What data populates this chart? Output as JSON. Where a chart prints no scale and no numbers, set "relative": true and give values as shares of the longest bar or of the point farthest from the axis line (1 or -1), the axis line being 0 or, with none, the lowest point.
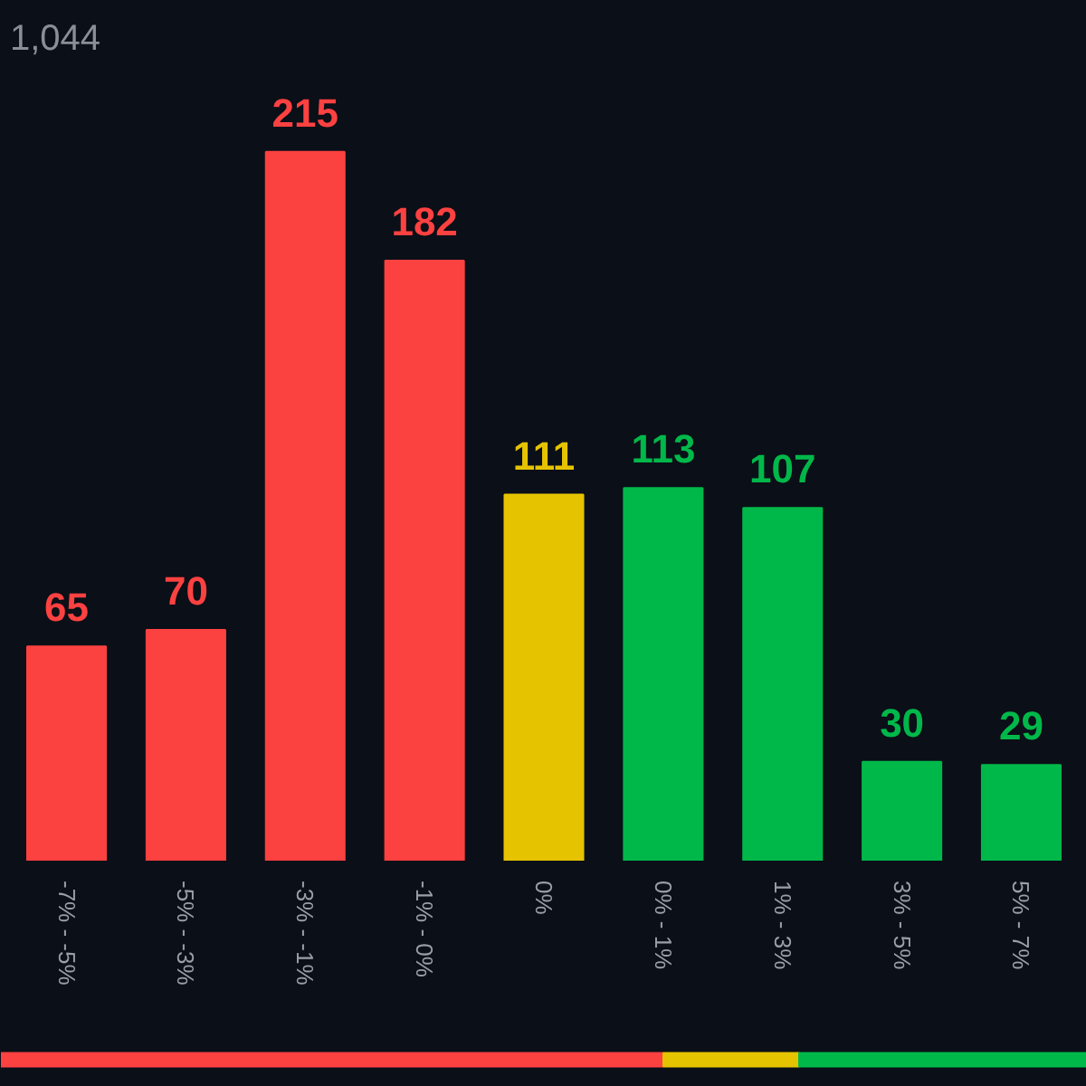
{
  "chart_data": [
    {
      "type": "bar",
      "categories": [
        "-7% - -5%",
        "-5% - -3%",
        "-3% - -1%",
        "-1% - 0%",
        "0%",
        "0% - 1%",
        "1% - 3%",
        "3% - 5%",
        "5% - 7%"
      ],
      "values": [
        65,
        70,
        215,
        182,
        111,
        113,
        107,
        30,
        29
      ],
      "colors": [
        "#fc4141",
        "#fc4141",
        "#fc4141",
        "#fc4141",
        "#e6c300",
        "#00b84a",
        "#00b84a",
        "#00b84a",
        "#00b84a"
      ],
      "data_labels": true,
      "annotations": [
        "1,044"
      ],
      "tick_labels": "x",
      "grid": false
    },
    {
      "type": "bar",
      "orientation": "horizontal",
      "stacked": true,
      "relative": true,
      "categories": [
        null
      ],
      "tick_labels": false,
      "grid": false,
      "series": [
        {
          "color": "#fc4141",
          "values": [
            0.61
          ]
        },
        {
          "color": "#e6c300",
          "values": [
            0.125
          ]
        },
        {
          "color": "#00b84a",
          "values": [
            0.265
          ]
        }
      ]
    }
  ]
}
